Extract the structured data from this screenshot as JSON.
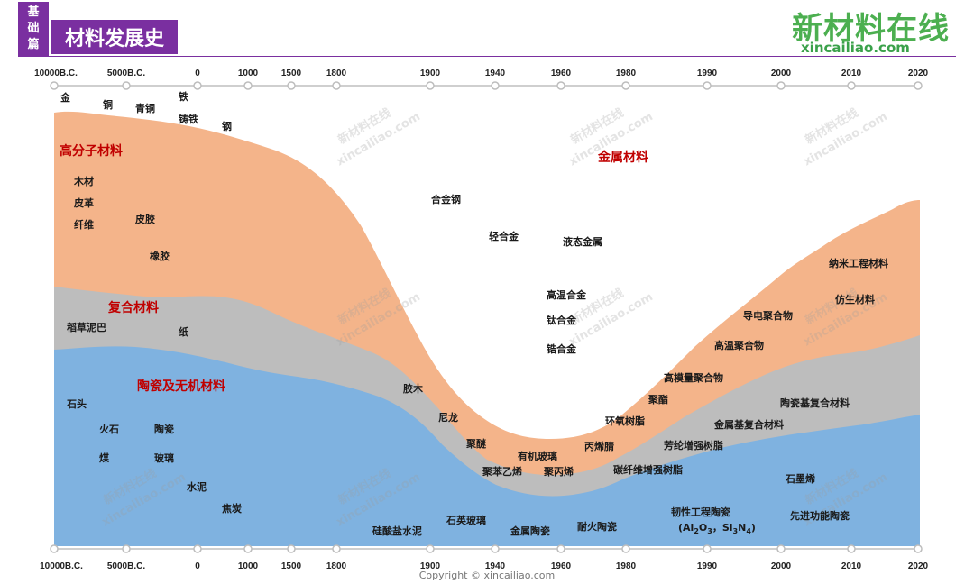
{
  "header": {
    "tag_lines": [
      "基",
      "础",
      "篇"
    ],
    "title": "材料发展史"
  },
  "logo": {
    "name": "新材料在线",
    "url": "xincailiao.com"
  },
  "timeline": {
    "ticks": [
      "10000B.C.",
      "5000B.C.",
      "0",
      "1000",
      "1500",
      "1800",
      "1900",
      "1940",
      "1960",
      "1980",
      "1990",
      "2000",
      "2010",
      "2020"
    ]
  },
  "categories": {
    "polymer": "高分子材料",
    "composite": "复合材料",
    "ceramic": "陶瓷及无机材料",
    "metal": "金属材料"
  },
  "colors": {
    "metal": "#ffffff",
    "polymer": "#f4b48a",
    "composite": "#bdbdbd",
    "ceramic": "#7fb2e0",
    "category_label": "#c00000",
    "brand_purple": "#7a2fa0",
    "brand_green": "#4caf50"
  },
  "materials": {
    "gold": "金",
    "copper": "铜",
    "bronze": "青铜",
    "iron": "铁",
    "cast_iron": "铸铁",
    "steel": "钢",
    "alloy_steel": "合金钢",
    "light_alloy": "轻合金",
    "liquid_metal": "液态金属",
    "superalloy": "高温合金",
    "titanium_alloy": "钛合金",
    "zirconium_alloy": "锆合金",
    "wood": "木材",
    "leather": "皮革",
    "fiber": "纤维",
    "hide_glue": "皮胶",
    "rubber": "橡胶",
    "straw_mud": "稻草泥巴",
    "paper": "纸",
    "stone": "石头",
    "flint": "火石",
    "pottery": "陶瓷",
    "coal": "煤",
    "glass": "玻璃",
    "cement": "水泥",
    "coke": "焦炭",
    "silicate_cement": "硅酸盐水泥",
    "quartz_glass": "石英玻璃",
    "metal_ceramic": "金属陶瓷",
    "refractory_ceramic": "耐火陶瓷",
    "tough_ceramic": "韧性工程陶瓷",
    "tough_ceramic_formula": [
      "(Al",
      "2",
      "O",
      "3",
      "，Si",
      "3",
      "N",
      "4",
      ")"
    ],
    "graphene": "石墨烯",
    "advanced_ceramic": "先进功能陶瓷",
    "bakelite": "胶木",
    "nylon": "尼龙",
    "polyether": "聚醚",
    "polystyrene": "聚苯乙烯",
    "plexiglass": "有机玻璃",
    "polypropylene": "聚丙烯",
    "acrylonitrile": "丙烯腈",
    "epoxy": "环氧树脂",
    "polyester": "聚酯",
    "high_modulus_polymer": "高模量聚合物",
    "high_temp_polymer": "高温聚合物",
    "conductive_polymer": "导电聚合物",
    "nano_material": "纳米工程材料",
    "biomimetic": "仿生材料",
    "carbon_fiber_resin": "碳纤维增强树脂",
    "aramid_resin": "芳纶增强树脂",
    "metal_matrix_composite": "金属基复合材料",
    "ceramic_matrix_composite": "陶瓷基复合材料"
  },
  "watermark": {
    "cn": "新材料在线",
    "en": "xincailiao.com"
  },
  "copyright": "Copyright © xincailiao.com"
}
